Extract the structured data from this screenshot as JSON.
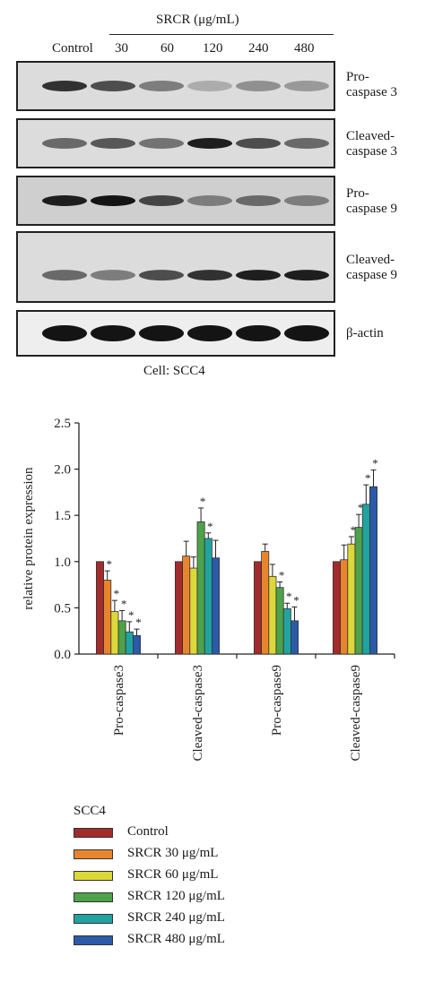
{
  "blot": {
    "treatment_header": "SRCR (μg/mL)",
    "lanes": [
      "Control",
      "30",
      "60",
      "120",
      "240",
      "480"
    ],
    "panels": [
      {
        "label_line1": "Pro-",
        "label_line2": "caspase 3",
        "band_intensity": [
          0.85,
          0.7,
          0.45,
          0.2,
          0.35,
          0.3
        ]
      },
      {
        "label_line1": "Cleaved-",
        "label_line2": "caspase 3",
        "band_intensity": [
          0.55,
          0.65,
          0.5,
          0.95,
          0.7,
          0.55
        ]
      },
      {
        "label_line1": "Pro-",
        "label_line2": "caspase 9",
        "band_intensity": [
          0.95,
          1.0,
          0.75,
          0.45,
          0.55,
          0.45
        ]
      },
      {
        "label_line1": "Cleaved-",
        "label_line2": "caspase 9",
        "band_intensity": [
          0.55,
          0.45,
          0.7,
          0.85,
          0.95,
          0.95
        ]
      },
      {
        "label_line1": "β-actin",
        "label_line2": "",
        "band_intensity": [
          1.0,
          1.0,
          1.0,
          1.0,
          1.0,
          1.0
        ]
      }
    ],
    "cell_label": "Cell: SCC4"
  },
  "chart_data": {
    "type": "bar",
    "ylabel": "relative protein expression",
    "xlabel": "",
    "ylim": [
      0,
      2.5
    ],
    "yticks": [
      "0.0",
      "0.5",
      "1.0",
      "1.5",
      "2.0",
      "2.5"
    ],
    "categories": [
      "Pro-caspase3",
      "Cleaved-caspase3",
      "Pro-caspase9",
      "Cleaved-caspase9"
    ],
    "legend_title": "SCC4",
    "legend_position": "bottom",
    "series": [
      {
        "name": "Control",
        "color": "#a32b2b",
        "values": [
          1.0,
          1.0,
          1.0,
          1.0
        ],
        "errors": [
          0,
          0,
          0,
          0
        ],
        "significant": [
          false,
          false,
          false,
          false
        ]
      },
      {
        "name": "SRCR 30 μg/mL",
        "color": "#e8852c",
        "values": [
          0.8,
          1.06,
          1.11,
          1.02
        ],
        "errors": [
          0.1,
          0.16,
          0.08,
          0.16
        ],
        "significant": [
          true,
          false,
          false,
          false
        ]
      },
      {
        "name": "SRCR 60 μg/mL",
        "color": "#dcd83a",
        "values": [
          0.46,
          0.93,
          0.84,
          1.19
        ],
        "errors": [
          0.12,
          0.12,
          0.13,
          0.08
        ],
        "significant": [
          true,
          false,
          false,
          true
        ]
      },
      {
        "name": "SRCR 120 μg/mL",
        "color": "#4ea24a",
        "values": [
          0.36,
          1.43,
          0.72,
          1.37
        ],
        "errors": [
          0.11,
          0.15,
          0.06,
          0.14
        ],
        "significant": [
          true,
          true,
          true,
          true
        ]
      },
      {
        "name": "SRCR 240 μg/mL",
        "color": "#21a3a0",
        "values": [
          0.24,
          1.25,
          0.49,
          1.62
        ],
        "errors": [
          0.11,
          0.06,
          0.06,
          0.21
        ],
        "significant": [
          true,
          true,
          true,
          true
        ]
      },
      {
        "name": "SRCR 480 μg/mL",
        "color": "#2c5aa8",
        "values": [
          0.2,
          1.04,
          0.36,
          1.81
        ],
        "errors": [
          0.07,
          0.19,
          0.15,
          0.18
        ],
        "significant": [
          true,
          false,
          true,
          true
        ]
      }
    ],
    "significance_marker": "*"
  }
}
